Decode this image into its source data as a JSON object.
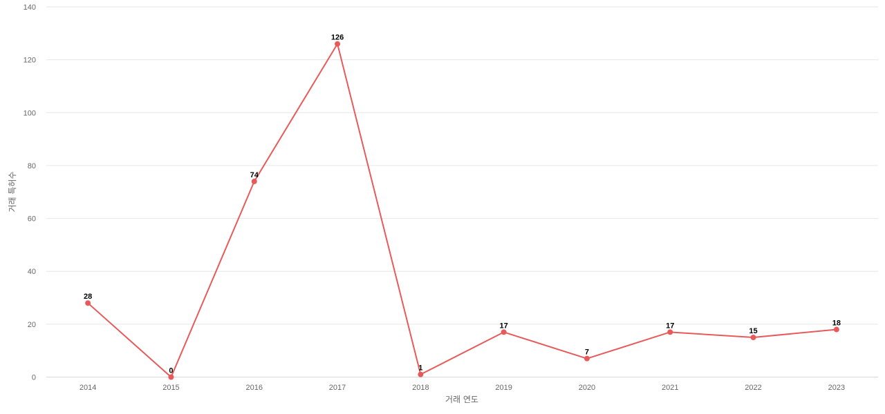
{
  "chart_data": {
    "type": "line",
    "title": "",
    "xlabel": "거래 연도",
    "ylabel": "거래 특허수",
    "categories": [
      "2014",
      "2015",
      "2016",
      "2017",
      "2018",
      "2019",
      "2020",
      "2021",
      "2022",
      "2023"
    ],
    "series": [
      {
        "values": [
          28,
          0,
          74,
          126,
          1,
          17,
          7,
          17,
          15,
          18
        ]
      }
    ],
    "ylim": [
      0,
      140
    ],
    "yticks": [
      0,
      20,
      40,
      60,
      80,
      100,
      120,
      140
    ],
    "grid": true,
    "data_labels": true,
    "legend": "none",
    "colors": {
      "line": "#e85a5a",
      "grid": "#e6e6e6",
      "tick_text": "#666666",
      "label_text": "#000000"
    }
  }
}
